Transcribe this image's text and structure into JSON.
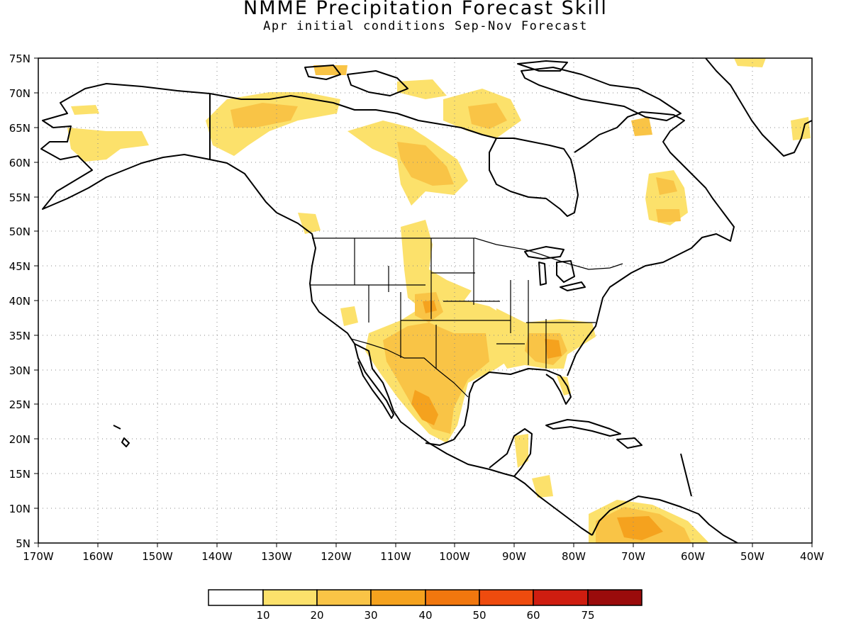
{
  "title": "NMME Precipitation Forecast Skill",
  "subtitle": "Apr initial conditions  Sep-Nov Forecast",
  "lat_ticks": [
    "75N",
    "70N",
    "65N",
    "60N",
    "55N",
    "50N",
    "45N",
    "40N",
    "35N",
    "30N",
    "25N",
    "20N",
    "15N",
    "10N",
    "5N"
  ],
  "lon_ticks": [
    "170W",
    "160W",
    "150W",
    "140W",
    "130W",
    "120W",
    "110W",
    "100W",
    "90W",
    "80W",
    "70W",
    "60W",
    "50W",
    "40W"
  ],
  "map_extent": {
    "lon_min": -170,
    "lon_max": -40,
    "lat_min": 5,
    "lat_max": 75
  },
  "colorbar": {
    "labels": [
      "10",
      "20",
      "30",
      "40",
      "50",
      "60",
      "75"
    ],
    "colors": [
      "#ffffff",
      "#fce16b",
      "#f9c446",
      "#f5a21e",
      "#f1770e",
      "#ee4b0e",
      "#cf1d10",
      "#9a0b0b"
    ]
  },
  "skill_regions": [
    {
      "name": "southwest-us-mexico",
      "level": 20
    },
    {
      "name": "texas-plains",
      "level": 20
    },
    {
      "name": "southeast-us",
      "level": 20
    },
    {
      "name": "northwest-canada",
      "level": 10
    },
    {
      "name": "western-alaska",
      "level": 10
    },
    {
      "name": "hudson-bay-region",
      "level": 20
    },
    {
      "name": "labrador",
      "level": 20
    },
    {
      "name": "northern-south-america",
      "level": 30
    },
    {
      "name": "central-america",
      "level": 10
    }
  ]
}
